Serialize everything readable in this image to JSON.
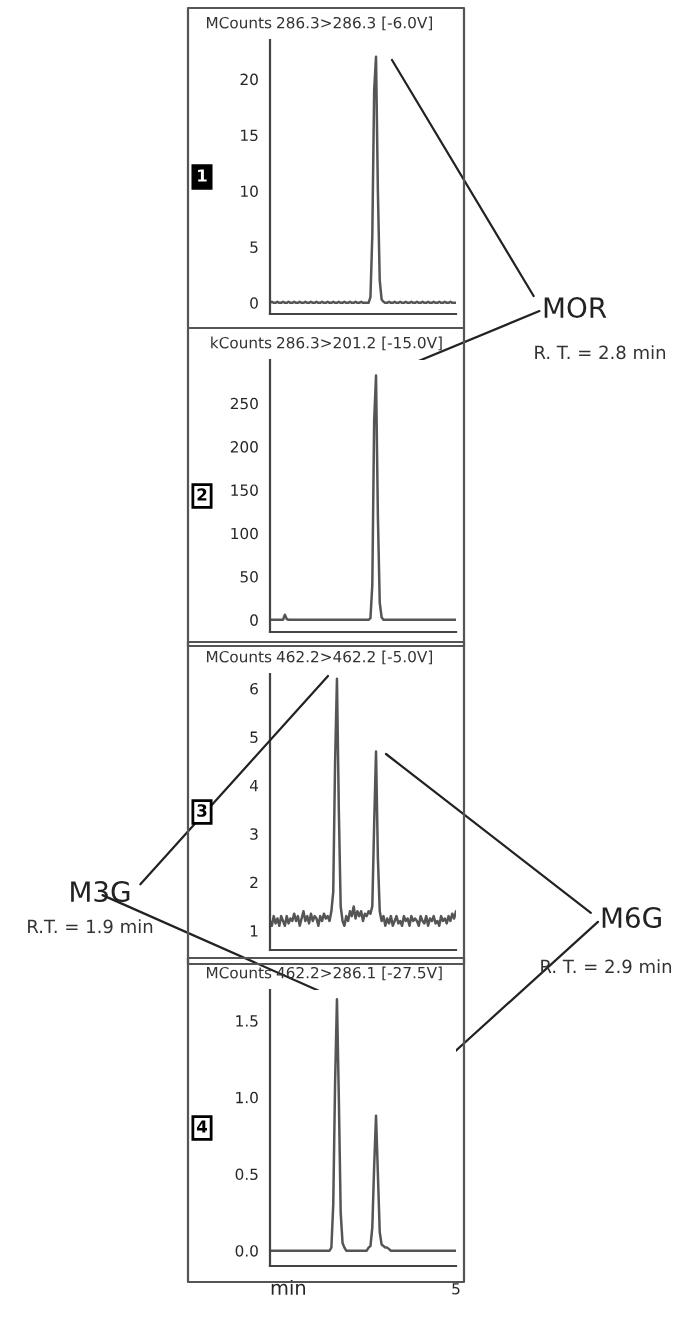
{
  "chart_data": [
    {
      "type": "line",
      "title": "286.3>286.3 [-6.0V]",
      "ylabel": "MCounts",
      "ylim": [
        -1,
        23.5
      ],
      "yticks": [
        0,
        5,
        10,
        15,
        20
      ],
      "tick_labels": "y",
      "grid": false,
      "annotations": [
        "1",
        "MOR",
        "R. T. = 2.8 min"
      ],
      "categories": [
        null,
        null,
        null,
        null,
        null,
        null,
        null,
        null,
        null,
        null,
        null,
        null,
        null,
        null,
        null,
        null,
        null,
        null,
        null,
        null,
        null,
        null,
        null,
        null,
        null,
        null,
        null,
        null,
        null,
        null,
        null,
        null,
        null,
        null,
        null,
        null,
        null,
        null,
        null,
        null,
        null,
        null,
        null,
        null,
        null,
        null,
        null,
        null,
        null,
        null,
        null,
        null,
        null,
        null,
        null,
        null,
        null,
        null,
        null,
        null,
        null,
        null,
        null,
        null,
        null,
        null,
        null,
        null,
        null,
        null,
        null,
        null,
        null,
        null,
        null,
        null,
        null,
        null,
        null,
        null,
        null,
        null,
        null,
        null,
        null,
        null,
        null,
        null,
        null,
        null,
        null,
        null,
        null,
        null,
        null,
        null,
        null,
        null,
        null,
        null,
        null
      ],
      "series": [
        {
          "color": "#555555",
          "values": [
            0,
            0.1,
            0,
            0,
            0.1,
            0,
            0,
            0.1,
            0,
            0,
            0.1,
            0,
            0,
            0.1,
            0,
            0,
            0.1,
            0,
            0,
            0.1,
            0,
            0,
            0.1,
            0,
            0,
            0.1,
            0,
            0,
            0.1,
            0,
            0,
            0.1,
            0,
            0,
            0.1,
            0,
            0,
            0.1,
            0,
            0,
            0.1,
            0,
            0,
            0.1,
            0,
            0,
            0.1,
            0,
            0,
            0.1,
            0,
            0,
            0,
            0,
            0.5,
            6,
            19,
            22,
            10,
            2,
            0.3,
            0.1,
            0,
            0,
            0.1,
            0,
            0,
            0.1,
            0,
            0,
            0.1,
            0,
            0,
            0.1,
            0,
            0,
            0.1,
            0,
            0,
            0.1,
            0,
            0,
            0.1,
            0,
            0,
            0.1,
            0,
            0,
            0.1,
            0,
            0,
            0.1,
            0,
            0,
            0.1,
            0,
            0,
            0.1,
            0,
            0,
            0
          ]
        }
      ]
    },
    {
      "type": "line",
      "title": "286.3>201.2 [-15.0V]",
      "ylabel": "kCounts",
      "ylim": [
        -14,
        300
      ],
      "yticks": [
        0,
        50,
        100,
        150,
        200,
        250
      ],
      "tick_labels": "y",
      "grid": false,
      "annotations": [
        "2"
      ],
      "categories": [
        null,
        null,
        null,
        null,
        null,
        null,
        null,
        null,
        null,
        null,
        null,
        null,
        null,
        null,
        null,
        null,
        null,
        null,
        null,
        null,
        null,
        null,
        null,
        null,
        null,
        null,
        null,
        null,
        null,
        null,
        null,
        null,
        null,
        null,
        null,
        null,
        null,
        null,
        null,
        null,
        null,
        null,
        null,
        null,
        null,
        null,
        null,
        null,
        null,
        null,
        null,
        null,
        null,
        null,
        null,
        null,
        null,
        null,
        null,
        null,
        null,
        null,
        null,
        null,
        null,
        null,
        null,
        null,
        null,
        null,
        null,
        null,
        null,
        null,
        null,
        null,
        null,
        null,
        null,
        null,
        null,
        null,
        null,
        null,
        null,
        null,
        null,
        null,
        null,
        null,
        null,
        null,
        null,
        null,
        null,
        null,
        null,
        null,
        null,
        null,
        null
      ],
      "series": [
        {
          "color": "#555555",
          "values": [
            0,
            0,
            0,
            0,
            0,
            0,
            0,
            0,
            6,
            1,
            0,
            0,
            0,
            0,
            0,
            0,
            0,
            0,
            0,
            0,
            0,
            0,
            0,
            0,
            0,
            0,
            0,
            0,
            0,
            0,
            0,
            0,
            0,
            0,
            0,
            0,
            0,
            0,
            0,
            0,
            0,
            0,
            0,
            0,
            0,
            0,
            0,
            0,
            0,
            0,
            0,
            0,
            0,
            0,
            2,
            40,
            230,
            282,
            120,
            20,
            3,
            0,
            0,
            0,
            0,
            0,
            0,
            0,
            0,
            0,
            0,
            0,
            0,
            0,
            0,
            0,
            0,
            0,
            0,
            0,
            0,
            0,
            0,
            0,
            0,
            0,
            0,
            0,
            0,
            0,
            0,
            0,
            0,
            0,
            0,
            0,
            0,
            0,
            0,
            0,
            0
          ]
        }
      ]
    },
    {
      "type": "line",
      "title": "462.2>462.2 [-5.0V]",
      "ylabel": "MCounts",
      "ylim": [
        0.6,
        6.3
      ],
      "yticks": [
        1,
        2,
        3,
        4,
        5,
        6
      ],
      "tick_labels": "y",
      "grid": false,
      "annotations": [
        "3",
        "M3G",
        "R.T. = 1.9 min",
        "M6G",
        "R. T. = 2.9 min"
      ],
      "categories": [
        null,
        null,
        null,
        null,
        null,
        null,
        null,
        null,
        null,
        null,
        null,
        null,
        null,
        null,
        null,
        null,
        null,
        null,
        null,
        null,
        null,
        null,
        null,
        null,
        null,
        null,
        null,
        null,
        null,
        null,
        null,
        null,
        null,
        null,
        null,
        null,
        null,
        null,
        null,
        null,
        null,
        null,
        null,
        null,
        null,
        null,
        null,
        null,
        null,
        null,
        null,
        null,
        null,
        null,
        null,
        null,
        null,
        null,
        null,
        null,
        null,
        null,
        null,
        null,
        null,
        null,
        null,
        null,
        null,
        null,
        null,
        null,
        null,
        null,
        null,
        null,
        null,
        null,
        null,
        null,
        null,
        null,
        null,
        null,
        null,
        null,
        null,
        null,
        null,
        null,
        null,
        null,
        null,
        null,
        null,
        null,
        null,
        null,
        null,
        null,
        null
      ],
      "series": [
        {
          "color": "#555555",
          "values": [
            1.2,
            1.1,
            1.3,
            1.15,
            1.25,
            1.1,
            1.3,
            1.2,
            1.1,
            1.3,
            1.15,
            1.25,
            1.2,
            1.35,
            1.2,
            1.3,
            1.1,
            1.25,
            1.4,
            1.2,
            1.3,
            1.15,
            1.35,
            1.2,
            1.3,
            1.25,
            1.1,
            1.3,
            1.2,
            1.35,
            1.25,
            1.3,
            1.2,
            1.4,
            1.8,
            4.5,
            6.2,
            3.5,
            1.5,
            1.2,
            1.1,
            1.3,
            1.2,
            1.4,
            1.3,
            1.5,
            1.25,
            1.4,
            1.3,
            1.4,
            1.2,
            1.35,
            1.3,
            1.4,
            1.35,
            1.5,
            3.2,
            4.7,
            2.5,
            1.4,
            1.2,
            1.3,
            1.1,
            1.25,
            1.15,
            1.3,
            1.1,
            1.2,
            1.3,
            1.15,
            1.2,
            1.1,
            1.3,
            1.2,
            1.25,
            1.1,
            1.3,
            1.2,
            1.25,
            1.2,
            1.1,
            1.3,
            1.2,
            1.15,
            1.3,
            1.1,
            1.25,
            1.2,
            1.3,
            1.15,
            1.2,
            1.1,
            1.3,
            1.2,
            1.25,
            1.15,
            1.3,
            1.2,
            1.35,
            1.25,
            1.4
          ]
        }
      ]
    },
    {
      "type": "line",
      "title": "462.2>286.1 [-27.5V]",
      "ylabel": "MCounts",
      "xlabel": "min",
      "ylim": [
        -0.1,
        1.7
      ],
      "yticks": [
        {
          "value": 0,
          "label": "0.0"
        },
        {
          "value": 0.5,
          "label": "0.5"
        },
        {
          "value": 1,
          "label": "1.0"
        },
        {
          "value": 1.5,
          "label": "1.5"
        }
      ],
      "tick_labels": "y",
      "grid": false,
      "annotations": [
        "4",
        "5"
      ],
      "categories": [
        null,
        null,
        null,
        null,
        null,
        null,
        null,
        null,
        null,
        null,
        null,
        null,
        null,
        null,
        null,
        null,
        null,
        null,
        null,
        null,
        null,
        null,
        null,
        null,
        null,
        null,
        null,
        null,
        null,
        null,
        null,
        null,
        null,
        null,
        null,
        null,
        null,
        null,
        null,
        null,
        null,
        null,
        null,
        null,
        null,
        null,
        null,
        null,
        null,
        null,
        null,
        null,
        null,
        null,
        null,
        null,
        null,
        null,
        null,
        null,
        null,
        null,
        null,
        null,
        null,
        null,
        null,
        null,
        null,
        null,
        null,
        null,
        null,
        null,
        null,
        null,
        null,
        null,
        null,
        null,
        null,
        null,
        null,
        null,
        null,
        null,
        null,
        null,
        null,
        null,
        null,
        null,
        null,
        null,
        null,
        null,
        null,
        null,
        null,
        null,
        null
      ],
      "series": [
        {
          "color": "#555555",
          "values": [
            0,
            0,
            0,
            0,
            0,
            0,
            0,
            0,
            0,
            0,
            0,
            0,
            0,
            0,
            0,
            0,
            0,
            0,
            0,
            0,
            0,
            0,
            0,
            0,
            0,
            0,
            0,
            0,
            0,
            0,
            0,
            0,
            0,
            0.02,
            0.3,
            1.1,
            1.64,
            1.0,
            0.25,
            0.05,
            0.02,
            0,
            0,
            0,
            0,
            0,
            0,
            0,
            0,
            0,
            0,
            0,
            0,
            0.02,
            0.03,
            0.15,
            0.55,
            0.88,
            0.5,
            0.12,
            0.04,
            0.03,
            0.02,
            0.02,
            0.01,
            0,
            0,
            0,
            0,
            0,
            0,
            0,
            0,
            0,
            0,
            0,
            0,
            0,
            0,
            0,
            0,
            0,
            0,
            0,
            0,
            0,
            0,
            0,
            0,
            0,
            0,
            0,
            0,
            0,
            0,
            0,
            0,
            0,
            0,
            0,
            0
          ]
        }
      ]
    }
  ]
}
